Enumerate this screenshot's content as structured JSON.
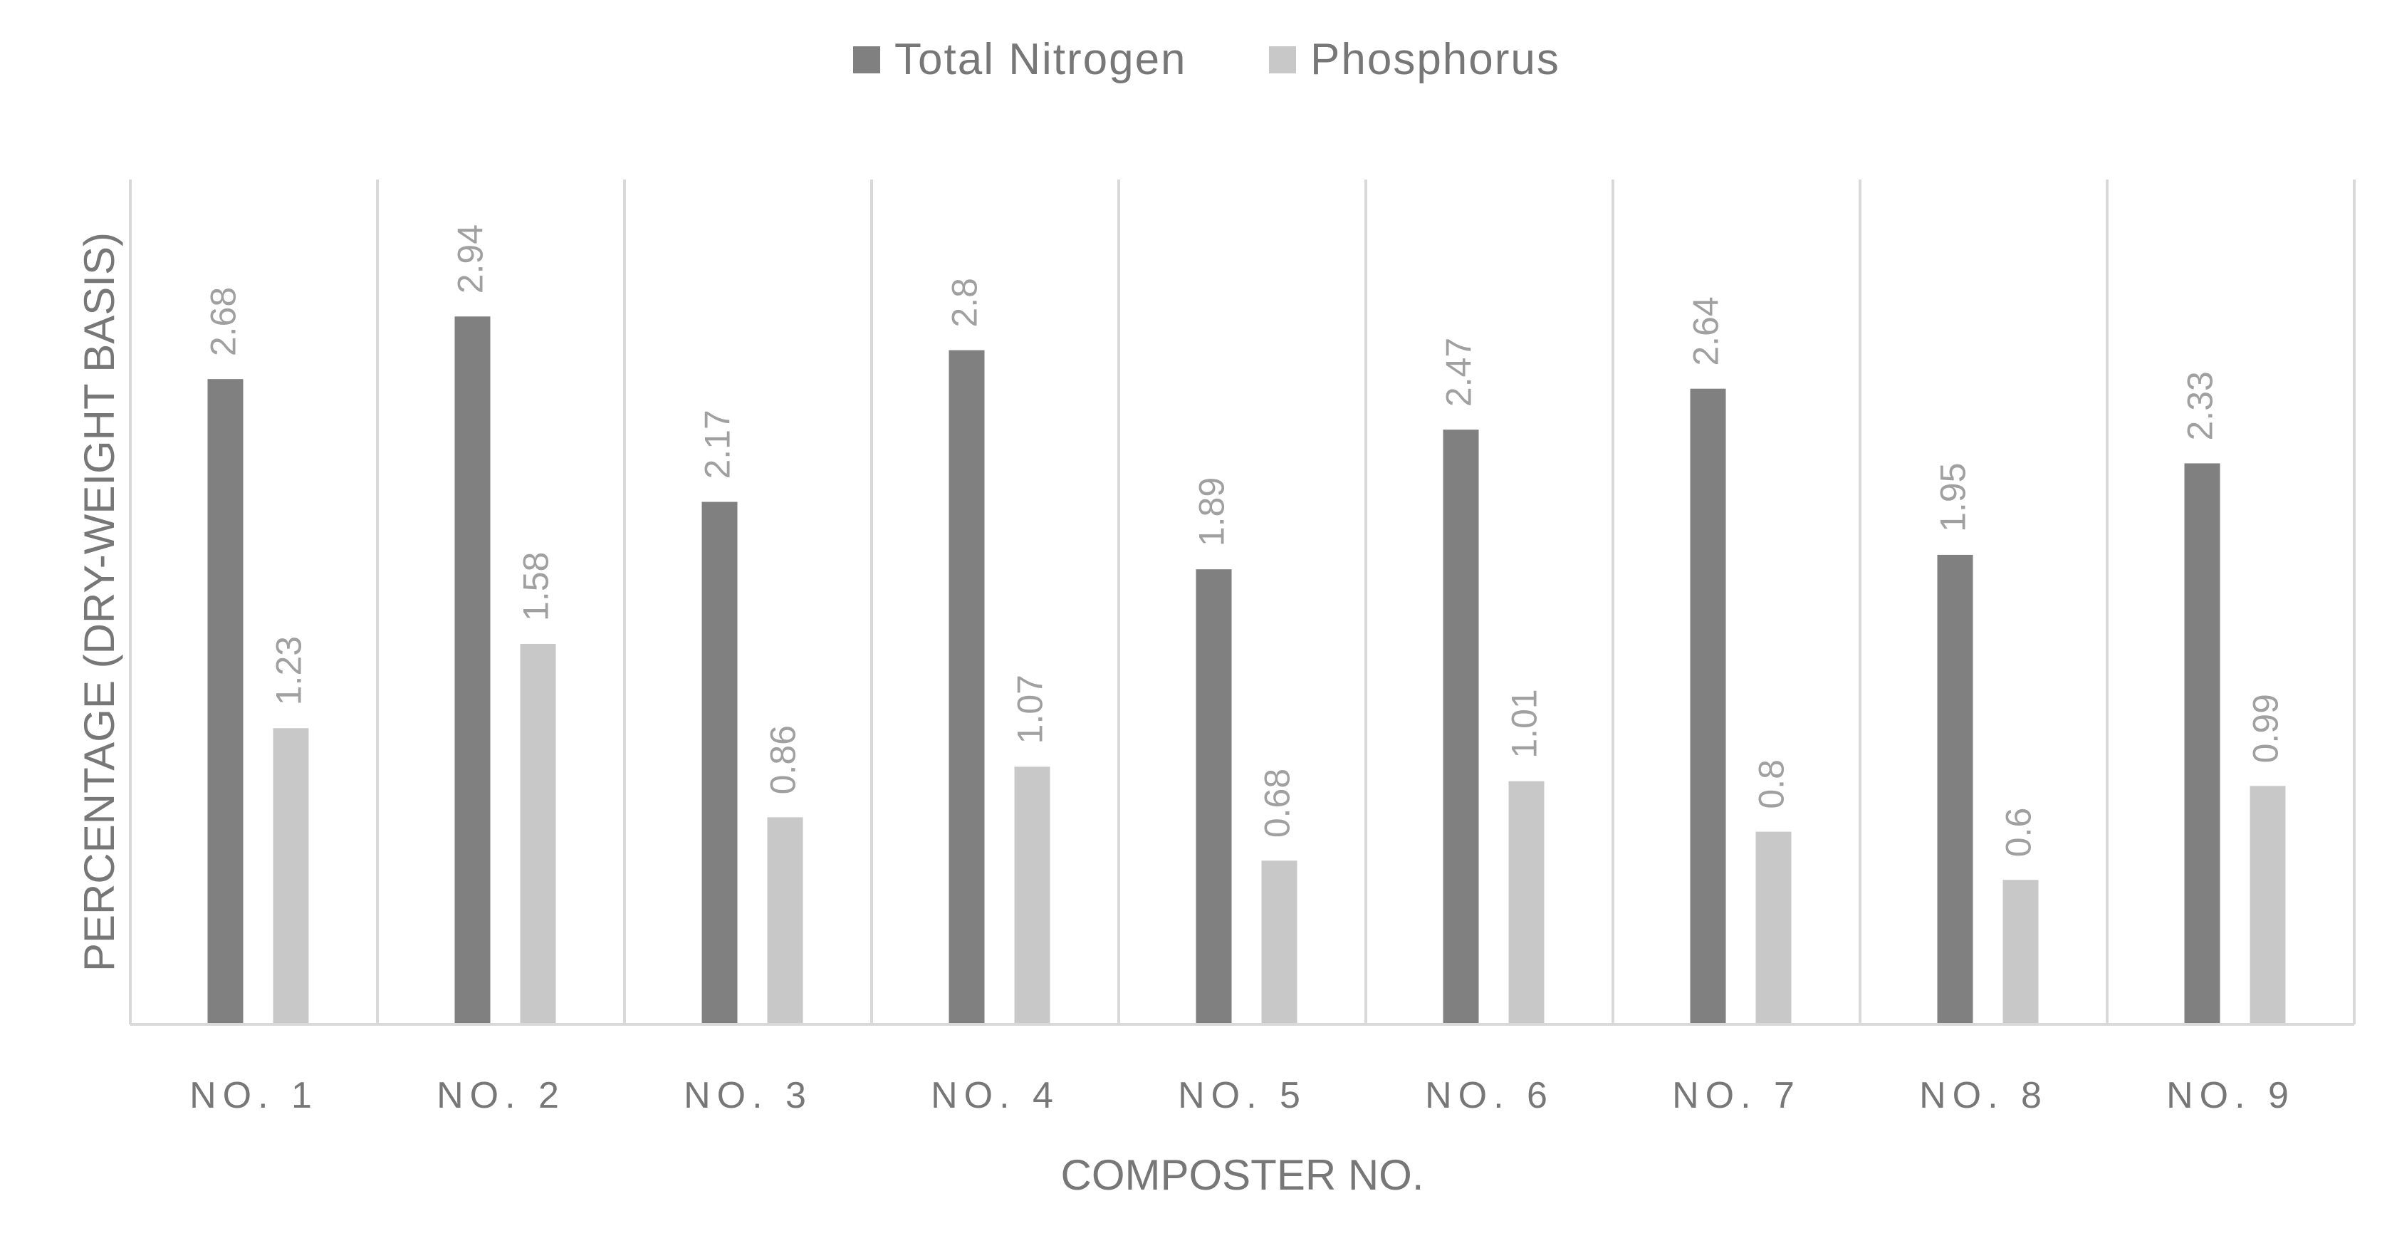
{
  "chart_data": {
    "type": "bar",
    "categories": [
      "NO. 1",
      "NO. 2",
      "NO. 3",
      "NO. 4",
      "NO. 5",
      "NO. 6",
      "NO. 7",
      "NO. 8",
      "NO. 9"
    ],
    "series": [
      {
        "name": "Total Nitrogen",
        "values": [
          2.68,
          2.94,
          2.17,
          2.8,
          1.89,
          2.47,
          2.64,
          1.95,
          2.33
        ],
        "labels": [
          "2.68",
          "2.94",
          "2.17",
          "2.8",
          "1.89",
          "2.47",
          "2.64",
          "1.95",
          "2.33"
        ],
        "color": "#808080"
      },
      {
        "name": "Phosphorus",
        "values": [
          1.23,
          1.58,
          0.86,
          1.07,
          0.68,
          1.01,
          0.8,
          0.6,
          0.99
        ],
        "labels": [
          "1.23",
          "1.58",
          "0.86",
          "1.07",
          "0.68",
          "1.01",
          "0.8",
          "0.6",
          "0.99"
        ],
        "color": "#c8c8c8"
      }
    ],
    "title": "",
    "xlabel": "COMPOSTER NO.",
    "ylabel": "PERCENTAGE (DRY-WEIGHT BASIS)",
    "ylim": [
      0,
      3.5
    ],
    "grid": false,
    "category_separators": true,
    "legend_position": "top-center",
    "label_color": "#a0a0a0",
    "text_color": "#777777",
    "axis_color": "#d9d9d9"
  }
}
